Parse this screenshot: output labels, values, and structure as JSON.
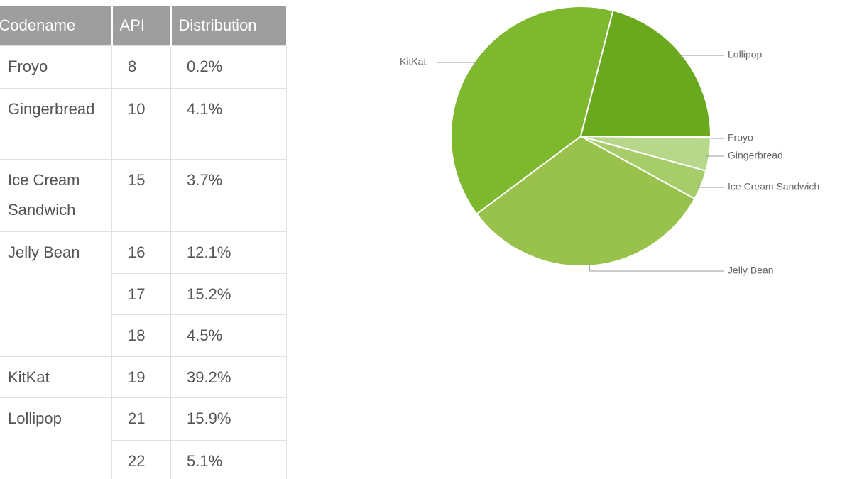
{
  "table": {
    "header": [
      "Codename",
      "API",
      "Distribution"
    ],
    "rows": [
      {
        "codename": "Froyo",
        "versions": [
          {
            "api": 8,
            "distribution": "0.2%"
          }
        ]
      },
      {
        "codename": "Gingerbread",
        "versions": [
          {
            "api": 10,
            "distribution": "4.1%"
          }
        ]
      },
      {
        "codename": "Ice Cream Sandwich",
        "versions": [
          {
            "api": 15,
            "distribution": "3.7%"
          }
        ]
      },
      {
        "codename": "Jelly Bean",
        "versions": [
          {
            "api": 16,
            "distribution": "12.1%"
          },
          {
            "api": 17,
            "distribution": "15.2%"
          },
          {
            "api": 18,
            "distribution": "4.5%"
          }
        ]
      },
      {
        "codename": "KitKat",
        "versions": [
          {
            "api": 19,
            "distribution": "39.2%"
          }
        ]
      },
      {
        "codename": "Lollipop",
        "versions": [
          {
            "api": 21,
            "distribution": "15.9%"
          },
          {
            "api": 22,
            "distribution": "5.1%"
          }
        ]
      }
    ]
  },
  "chart_data": {
    "type": "pie",
    "categories": [
      "Froyo",
      "Gingerbread",
      "Ice Cream Sandwich",
      "Jelly Bean",
      "KitKat",
      "Lollipop"
    ],
    "values": [
      0.2,
      4.1,
      3.7,
      31.8,
      39.2,
      21.0
    ],
    "colors": [
      "#cde3a8",
      "#b7d78a",
      "#a6cd6a",
      "#98c24c",
      "#7db82f",
      "#6aa81d"
    ]
  }
}
